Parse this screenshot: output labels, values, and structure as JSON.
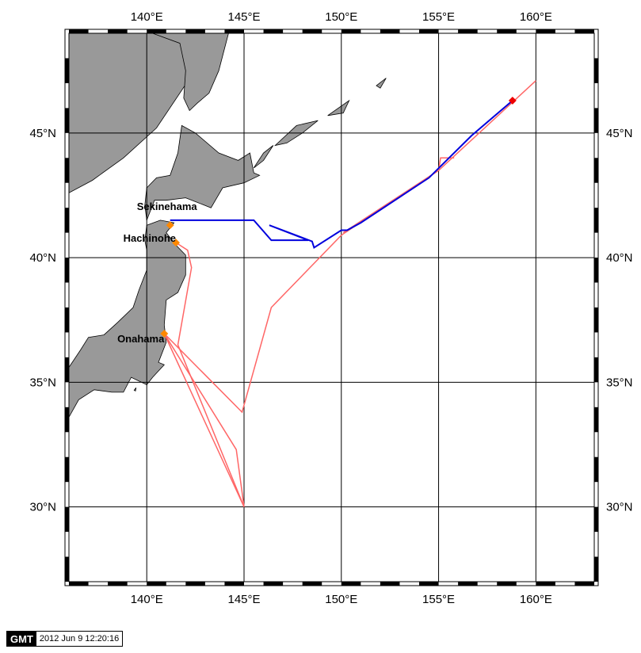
{
  "map": {
    "lon_range": [
      136,
      163
    ],
    "lat_range": [
      27,
      49
    ],
    "lon_ticks": [
      {
        "value": 140,
        "label": "140°E"
      },
      {
        "value": 145,
        "label": "145°E"
      },
      {
        "value": 150,
        "label": "150°E"
      },
      {
        "value": 155,
        "label": "155°E"
      },
      {
        "value": 160,
        "label": "160°E"
      }
    ],
    "lat_ticks": [
      {
        "value": 45,
        "label": "45°N"
      },
      {
        "value": 40,
        "label": "40°N"
      },
      {
        "value": 35,
        "label": "35°N"
      },
      {
        "value": 30,
        "label": "30°N"
      }
    ],
    "grid": true,
    "colors": {
      "land": "#999999",
      "frame": "#000000",
      "planned_route": "#ff6666",
      "actual_track": "#0000dd",
      "port_marker": "#ff8800",
      "position_marker": "#ee0000"
    },
    "ports": [
      {
        "name": "Sekinehama",
        "lon": 141.2,
        "lat": 41.3
      },
      {
        "name": "Hachinohe",
        "lon": 141.5,
        "lat": 40.6
      },
      {
        "name": "Onahama",
        "lon": 140.9,
        "lat": 36.95
      }
    ],
    "current_position": {
      "lon": 158.8,
      "lat": 46.3
    },
    "planned_routes": [
      [
        [
          140.9,
          36.95
        ],
        [
          144.9,
          33.8
        ],
        [
          146.4,
          38.0
        ],
        [
          150.0,
          40.9
        ],
        [
          155.0,
          43.5
        ],
        [
          160.0,
          47.1
        ]
      ],
      [
        [
          140.9,
          36.95
        ],
        [
          144.6,
          32.3
        ],
        [
          145.0,
          30.0
        ],
        [
          140.9,
          36.95
        ]
      ],
      [
        [
          141.5,
          40.6
        ],
        [
          142.1,
          40.3
        ],
        [
          142.3,
          39.6
        ],
        [
          141.6,
          36.5
        ],
        [
          145.0,
          30.0
        ]
      ],
      [
        [
          150.1,
          41.0
        ],
        [
          155.0,
          43.5
        ],
        [
          155.1,
          44.0
        ],
        [
          155.8,
          44.0
        ]
      ]
    ],
    "actual_track": [
      [
        141.2,
        41.5
      ],
      [
        142.5,
        41.5
      ],
      [
        145.5,
        41.5
      ],
      [
        146.4,
        40.7
      ],
      [
        148.3,
        40.7
      ],
      [
        146.3,
        41.3
      ],
      [
        148.5,
        40.65
      ],
      [
        148.6,
        40.4
      ],
      [
        150.0,
        41.1
      ],
      [
        150.3,
        41.1
      ],
      [
        151.0,
        41.4
      ],
      [
        154.5,
        43.2
      ],
      [
        156.7,
        44.9
      ],
      [
        158.8,
        46.3
      ]
    ]
  },
  "gmt_stamp": {
    "logo": "GMT",
    "timestamp": "2012 Jun  9 12:20:16"
  }
}
